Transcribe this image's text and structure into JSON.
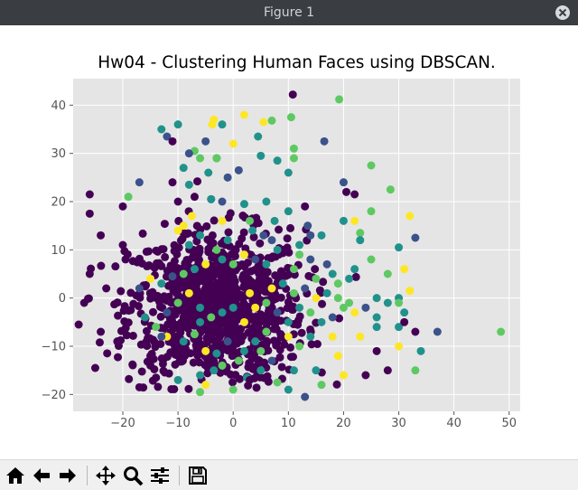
{
  "window": {
    "title": "Figure 1"
  },
  "toolbar": {
    "icons": [
      "home-icon",
      "back-arrow-icon",
      "forward-arrow-icon",
      "pan-move-icon",
      "zoom-magnifier-icon",
      "configure-subplots-icon",
      "save-floppy-icon"
    ]
  },
  "chart_data": {
    "type": "scatter",
    "title": "Hw04 - Clustering Human Faces using DBSCAN.",
    "xlabel": "",
    "ylabel": "",
    "xlim": [
      -29,
      52
    ],
    "ylim": [
      -23.5,
      45.5
    ],
    "xticks": [
      "−20",
      "−10",
      "0",
      "10",
      "20",
      "30",
      "40",
      "50"
    ],
    "xtick_values": [
      -20,
      -10,
      0,
      10,
      20,
      30,
      40,
      50
    ],
    "yticks": [
      "−20",
      "−10",
      "0",
      "10",
      "20",
      "30",
      "40"
    ],
    "ytick_values": [
      -20,
      -10,
      0,
      10,
      20,
      30,
      40
    ],
    "grid": true,
    "colormap": "viridis",
    "background_color": "#e5e5e5",
    "colors": {
      "c0": "#440154",
      "c1": "#3b528b",
      "c2": "#21918c",
      "c3": "#5ec962",
      "c4": "#fde725"
    },
    "dense_cluster": {
      "center": [
        -3,
        -2
      ],
      "spread": [
        8,
        8
      ],
      "count": 950,
      "color": "#440154"
    },
    "points": [
      [
        10.8,
        42.2,
        0
      ],
      [
        19.2,
        41.2,
        3
      ],
      [
        -3.5,
        37,
        4
      ],
      [
        -3.8,
        36,
        4
      ],
      [
        2,
        38,
        4
      ],
      [
        5.5,
        36.5,
        4
      ],
      [
        7,
        36.8,
        3
      ],
      [
        10.5,
        37.5,
        3
      ],
      [
        -13,
        35,
        2
      ],
      [
        -10,
        36,
        2
      ],
      [
        -12,
        33.5,
        1
      ],
      [
        -11,
        32.5,
        0
      ],
      [
        -7,
        30.5,
        3
      ],
      [
        -5,
        32.5,
        1
      ],
      [
        -2,
        36,
        2
      ],
      [
        0,
        32,
        4
      ],
      [
        4.5,
        33.5,
        2
      ],
      [
        11,
        31,
        3
      ],
      [
        16.5,
        32.5,
        1
      ],
      [
        -6,
        29,
        3
      ],
      [
        -3,
        29,
        2
      ],
      [
        1,
        26.5,
        1
      ],
      [
        5,
        29.5,
        2
      ],
      [
        8,
        28.5,
        2
      ],
      [
        11,
        29,
        3
      ],
      [
        -4.5,
        26,
        2
      ],
      [
        -9,
        27,
        2
      ],
      [
        -11,
        24,
        0
      ],
      [
        -17,
        24,
        1
      ],
      [
        -10,
        20,
        0
      ],
      [
        -7,
        21,
        0
      ],
      [
        -4,
        20.5,
        1
      ],
      [
        -2,
        20,
        1
      ],
      [
        2,
        19.5,
        2
      ],
      [
        6,
        20,
        2
      ],
      [
        10,
        18,
        2
      ],
      [
        13,
        19,
        0
      ],
      [
        20,
        24,
        1
      ],
      [
        20.5,
        22,
        0
      ],
      [
        22,
        21.5,
        0
      ],
      [
        25,
        27.5,
        3
      ],
      [
        28.5,
        22.5,
        3
      ],
      [
        32,
        17,
        4
      ],
      [
        22,
        16,
        4
      ],
      [
        25,
        18,
        3
      ],
      [
        20,
        16,
        2
      ],
      [
        23,
        13.5,
        3
      ],
      [
        16,
        13,
        2
      ],
      [
        13.5,
        15,
        1
      ],
      [
        7.5,
        16,
        2
      ],
      [
        5.5,
        13,
        1
      ],
      [
        3.5,
        14,
        2
      ],
      [
        -2,
        16,
        4
      ],
      [
        -9,
        15,
        4
      ],
      [
        -10,
        14,
        4
      ],
      [
        -6,
        13,
        2
      ],
      [
        -8,
        11,
        2
      ],
      [
        -7.5,
        17,
        4
      ],
      [
        -19,
        21,
        3
      ],
      [
        -26,
        21.5,
        0
      ],
      [
        -20,
        19,
        0
      ],
      [
        -26,
        17.5,
        0
      ],
      [
        -24,
        13,
        0
      ],
      [
        -20,
        11,
        0
      ],
      [
        -26,
        5,
        0
      ],
      [
        -23,
        2,
        0
      ],
      [
        -27,
        -1,
        0
      ],
      [
        -28,
        -5.5,
        0
      ],
      [
        -24,
        -7,
        0
      ],
      [
        -21,
        -9,
        0
      ],
      [
        -25,
        -14.5,
        0
      ],
      [
        -17,
        -18.5,
        0
      ],
      [
        -15,
        -12,
        0
      ],
      [
        -12,
        -8,
        4
      ],
      [
        -9,
        -9,
        2
      ],
      [
        -7,
        -7.5,
        3
      ],
      [
        -5,
        -11,
        4
      ],
      [
        -3,
        -11.5,
        2
      ],
      [
        -2,
        -14,
        3
      ],
      [
        -6,
        -16,
        2
      ],
      [
        -6,
        -19.5,
        3
      ],
      [
        0,
        -19,
        3
      ],
      [
        2.5,
        -16.5,
        2
      ],
      [
        5,
        -15,
        2
      ],
      [
        8,
        -17.5,
        3
      ],
      [
        10,
        -19,
        2
      ],
      [
        11,
        -15,
        2
      ],
      [
        13,
        -20.5,
        1
      ],
      [
        15,
        -15,
        2
      ],
      [
        16,
        -18,
        3
      ],
      [
        20,
        -16,
        4
      ],
      [
        24,
        -16,
        0
      ],
      [
        28,
        -15,
        0
      ],
      [
        23,
        -8,
        4
      ],
      [
        26,
        -6,
        2
      ],
      [
        30,
        -6,
        2
      ],
      [
        30,
        -10,
        4
      ],
      [
        33,
        -7,
        0
      ],
      [
        34,
        -11,
        2
      ],
      [
        33,
        -15,
        3
      ],
      [
        37,
        -7,
        1
      ],
      [
        48.5,
        -7,
        3
      ],
      [
        31,
        -3,
        2
      ],
      [
        28,
        -1,
        2
      ],
      [
        26,
        0,
        2
      ],
      [
        30,
        0,
        2
      ],
      [
        32,
        1.5,
        4
      ],
      [
        30,
        -1,
        3
      ],
      [
        28,
        5,
        3
      ],
      [
        31,
        6,
        4
      ],
      [
        30,
        10.5,
        2
      ],
      [
        33,
        12.5,
        1
      ],
      [
        25,
        8,
        3
      ],
      [
        22,
        6,
        2
      ],
      [
        21,
        4,
        2
      ],
      [
        19,
        3,
        3
      ],
      [
        17,
        7,
        1
      ],
      [
        14,
        8,
        1
      ],
      [
        12,
        9,
        3
      ],
      [
        8,
        10,
        2
      ],
      [
        6,
        7,
        2
      ],
      [
        4,
        8,
        1
      ],
      [
        2,
        9,
        4
      ],
      [
        0,
        7,
        3
      ],
      [
        -2,
        8,
        2
      ],
      [
        -5,
        7,
        4
      ],
      [
        -7,
        6,
        2
      ],
      [
        -9,
        5,
        3
      ],
      [
        -11,
        4.5,
        1
      ],
      [
        -13,
        3,
        2
      ],
      [
        -15,
        4,
        4
      ],
      [
        -17,
        2,
        1
      ],
      [
        -16,
        -4,
        2
      ],
      [
        -14,
        -6,
        3
      ],
      [
        -12,
        -3,
        1
      ],
      [
        -10,
        -1,
        3
      ],
      [
        -8,
        1,
        4
      ],
      [
        -6,
        -2,
        2
      ],
      [
        -4,
        -4,
        3
      ],
      [
        -2,
        -3,
        2
      ],
      [
        0,
        -2,
        2
      ],
      [
        2,
        -5,
        4
      ],
      [
        4,
        -2,
        4
      ],
      [
        6,
        -1,
        3
      ],
      [
        8,
        -3,
        1
      ],
      [
        10,
        -5,
        2
      ],
      [
        12,
        -2,
        2
      ],
      [
        14,
        -3,
        3
      ],
      [
        16,
        -5,
        2
      ],
      [
        18,
        -4,
        1
      ],
      [
        20,
        -2,
        3
      ],
      [
        22,
        -3,
        4
      ],
      [
        24,
        -2,
        1
      ],
      [
        26,
        -4,
        2
      ],
      [
        18,
        -8,
        4
      ],
      [
        14,
        -8,
        2
      ],
      [
        12,
        -10,
        3
      ],
      [
        10,
        -8,
        4
      ],
      [
        6,
        -7,
        3
      ],
      [
        4,
        -9,
        2
      ],
      [
        2,
        -11,
        2
      ],
      [
        -1,
        -9,
        1
      ],
      [
        3,
        1,
        4
      ],
      [
        7,
        2,
        4
      ],
      [
        9,
        3,
        2
      ],
      [
        11,
        1,
        3
      ],
      [
        13,
        2,
        1
      ],
      [
        15,
        0,
        4
      ],
      [
        17,
        1,
        2
      ],
      [
        19,
        0,
        3
      ],
      [
        21,
        -1,
        3
      ],
      [
        11,
        6,
        3
      ],
      [
        15,
        4,
        3
      ],
      [
        18,
        5,
        2
      ],
      [
        7,
        12,
        1
      ],
      [
        -3,
        10,
        3
      ],
      [
        -1,
        12,
        2
      ],
      [
        12,
        11,
        2
      ],
      [
        -13,
        -8,
        1
      ],
      [
        -6,
        -5,
        2
      ],
      [
        5,
        -11,
        3
      ],
      [
        19,
        -12,
        4
      ],
      [
        23,
        12,
        2
      ],
      [
        14,
        13,
        1
      ],
      [
        3,
        16,
        3
      ],
      [
        -4,
        20.5,
        2
      ],
      [
        10,
        26,
        2
      ],
      [
        -8,
        30,
        1
      ],
      [
        -3,
        29,
        3
      ],
      [
        -1,
        25,
        1
      ],
      [
        -8,
        23.5,
        2
      ],
      [
        26,
        -11,
        0
      ],
      [
        31,
        -5,
        0
      ],
      [
        -5,
        -18,
        4
      ],
      [
        -3.5,
        -15,
        2
      ],
      [
        1,
        -13,
        3
      ],
      [
        -10,
        -17,
        2
      ],
      [
        -15,
        -14,
        0
      ],
      [
        3,
        -17,
        0
      ],
      [
        7,
        -13,
        1
      ]
    ]
  }
}
